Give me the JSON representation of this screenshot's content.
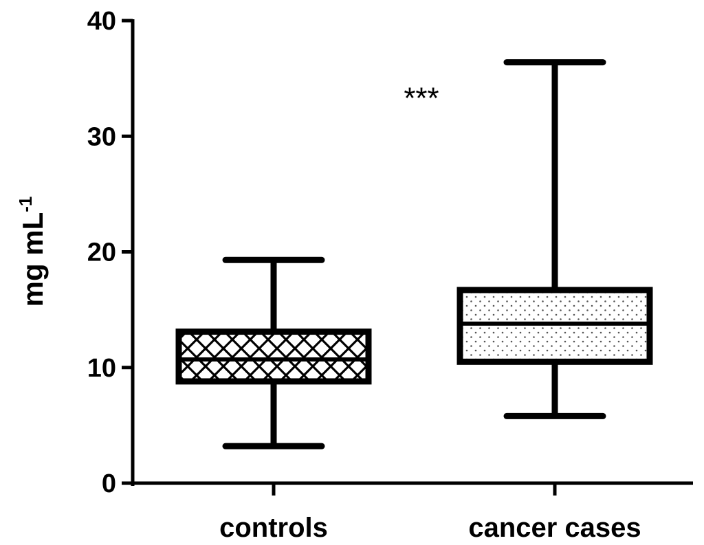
{
  "chart_data": {
    "type": "box",
    "title": "",
    "xlabel": "",
    "ylabel": "mg mL",
    "ylabel_superscript": "-1",
    "ylim": [
      0,
      40
    ],
    "yticks": [
      0,
      10,
      20,
      30,
      40
    ],
    "grid": false,
    "categories": [
      "controls",
      "cancer cases"
    ],
    "boxes": [
      {
        "category": "controls",
        "min": 3.2,
        "q1": 8.8,
        "median": 10.7,
        "q3": 13.1,
        "max": 19.3,
        "pattern": "crosshatch"
      },
      {
        "category": "cancer cases",
        "min": 5.8,
        "q1": 10.5,
        "median": 13.8,
        "q3": 16.7,
        "max": 36.4,
        "pattern": "dots"
      }
    ],
    "annotations": [
      {
        "text": "***",
        "category": "cancer cases",
        "y": 33.5
      }
    ],
    "colors": {
      "stroke": "#000000",
      "background": "#ffffff"
    }
  }
}
